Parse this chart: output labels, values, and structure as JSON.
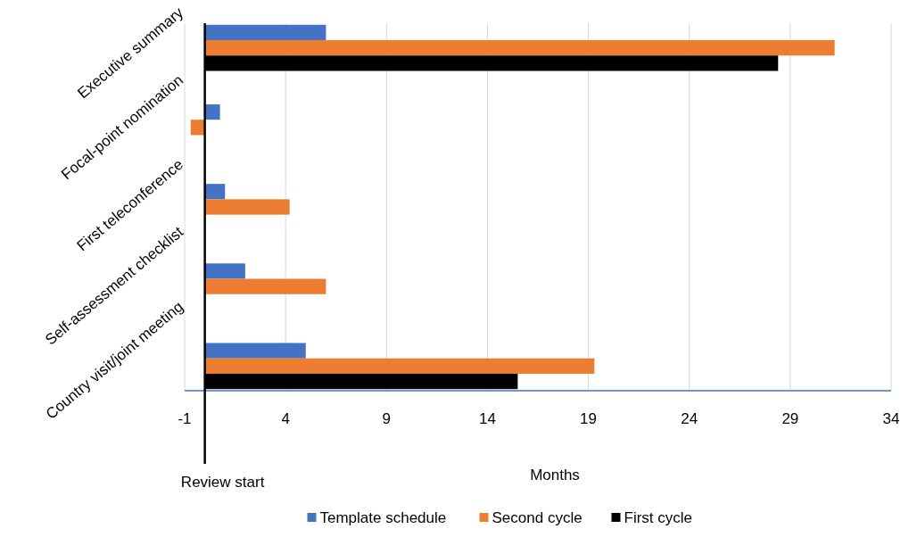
{
  "chart_data": {
    "type": "bar",
    "orientation": "horizontal",
    "xlabel": "Months",
    "categories": [
      "Executive summary",
      "Focal-point nomination",
      "First teleconference",
      "Self-assessment checklist",
      "Country visit/joint meeting"
    ],
    "series": [
      {
        "name": "Template schedule",
        "color": "#4472c4",
        "values": [
          6,
          0.75,
          1,
          2,
          5
        ]
      },
      {
        "name": "Second cycle",
        "color": "#ed7d31",
        "values": [
          31.2,
          -0.7,
          4.2,
          6,
          19.3
        ]
      },
      {
        "name": "First cycle",
        "color": "#000000",
        "values": [
          28.4,
          null,
          null,
          null,
          15.5
        ]
      }
    ],
    "xlim": [
      -1,
      34
    ],
    "xticks": [
      -1,
      4,
      9,
      14,
      19,
      24,
      29,
      34
    ],
    "grid": "x",
    "legend": "bottom",
    "ref_lines": [
      {
        "axis": "x",
        "value": 0,
        "label": "Review start",
        "color": "#000000"
      }
    ]
  }
}
